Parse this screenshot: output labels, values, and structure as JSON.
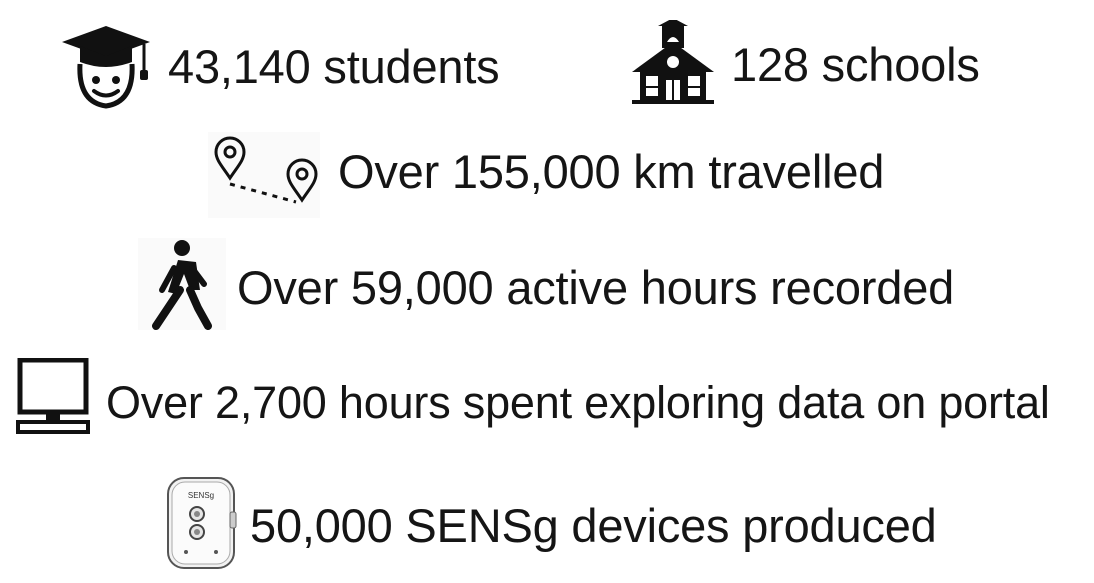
{
  "stats": {
    "students": {
      "label": "43,140 students",
      "icon": "graduate-face-icon"
    },
    "schools": {
      "label": "128 schools",
      "icon": "schoolhouse-icon"
    },
    "distance": {
      "label": "Over 155,000 km travelled",
      "icon": "route-pins-icon"
    },
    "active": {
      "label": "Over 59,000 active hours recorded",
      "icon": "walking-person-icon"
    },
    "portal": {
      "label": "Over 2,700 hours spent exploring data on portal",
      "icon": "computer-monitor-icon"
    },
    "devices": {
      "label": "50,000 SENSg devices produced",
      "icon": "sensg-device-icon",
      "device_text": "SENSg"
    }
  },
  "colors": {
    "text": "#151515",
    "icon": "#111111",
    "device_body": "#f2f2f2"
  }
}
